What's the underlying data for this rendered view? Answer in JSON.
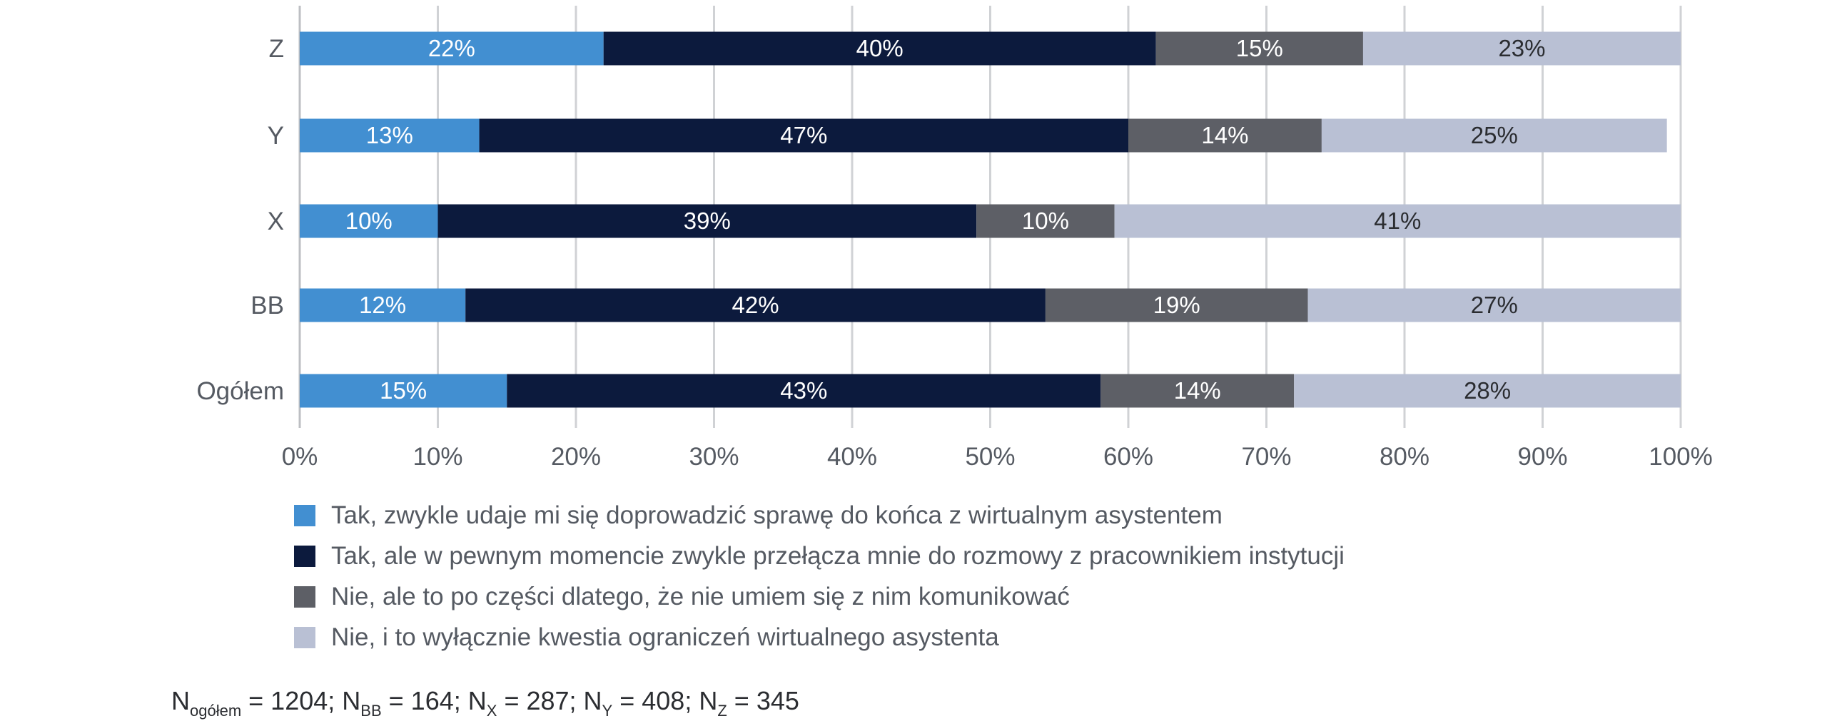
{
  "chart_data": {
    "type": "bar",
    "orientation": "horizontal",
    "stacked": true,
    "categories": [
      "Z",
      "Y",
      "X",
      "BB",
      "Ogółem"
    ],
    "series": [
      {
        "name": "Tak, zwykle udaje mi się doprowadzić sprawę do końca z wirtualnym asystentem",
        "color": "#428fd1",
        "label_color": "#ffffff",
        "values": [
          22,
          13,
          10,
          12,
          15
        ]
      },
      {
        "name": "Tak, ale w pewnym momencie zwykle przełącza mnie do rozmowy z pracownikiem instytucji",
        "color": "#0c1a3d",
        "label_color": "#ffffff",
        "values": [
          40,
          47,
          39,
          42,
          43
        ]
      },
      {
        "name": "Nie, ale to po części dlatego, że nie umiem się z nim komunikować",
        "color": "#5d5f66",
        "label_color": "#ffffff",
        "values": [
          15,
          14,
          10,
          19,
          14
        ]
      },
      {
        "name": "Nie, i to wyłącznie kwestia ograniczeń wirtualnego asystenta",
        "color": "#b9c0d4",
        "label_color": "#2a2c30",
        "values": [
          23,
          25,
          41,
          27,
          28
        ]
      }
    ],
    "xlim": [
      0,
      100
    ],
    "xticks": [
      "0%",
      "10%",
      "20%",
      "30%",
      "40%",
      "50%",
      "60%",
      "70%",
      "80%",
      "90%",
      "100%"
    ],
    "grid": "vertical",
    "legend_position": "bottom-left"
  },
  "footnote": [
    {
      "base": "N",
      "sub": "ogółem",
      "rest": " = 1204; "
    },
    {
      "base": "N",
      "sub": "BB",
      "rest": " = 164; "
    },
    {
      "base": "N",
      "sub": "X",
      "rest": " = 287; "
    },
    {
      "base": "N",
      "sub": "Y",
      "rest": " = 408; "
    },
    {
      "base": "N",
      "sub": "Z",
      "rest": " = 345"
    }
  ]
}
